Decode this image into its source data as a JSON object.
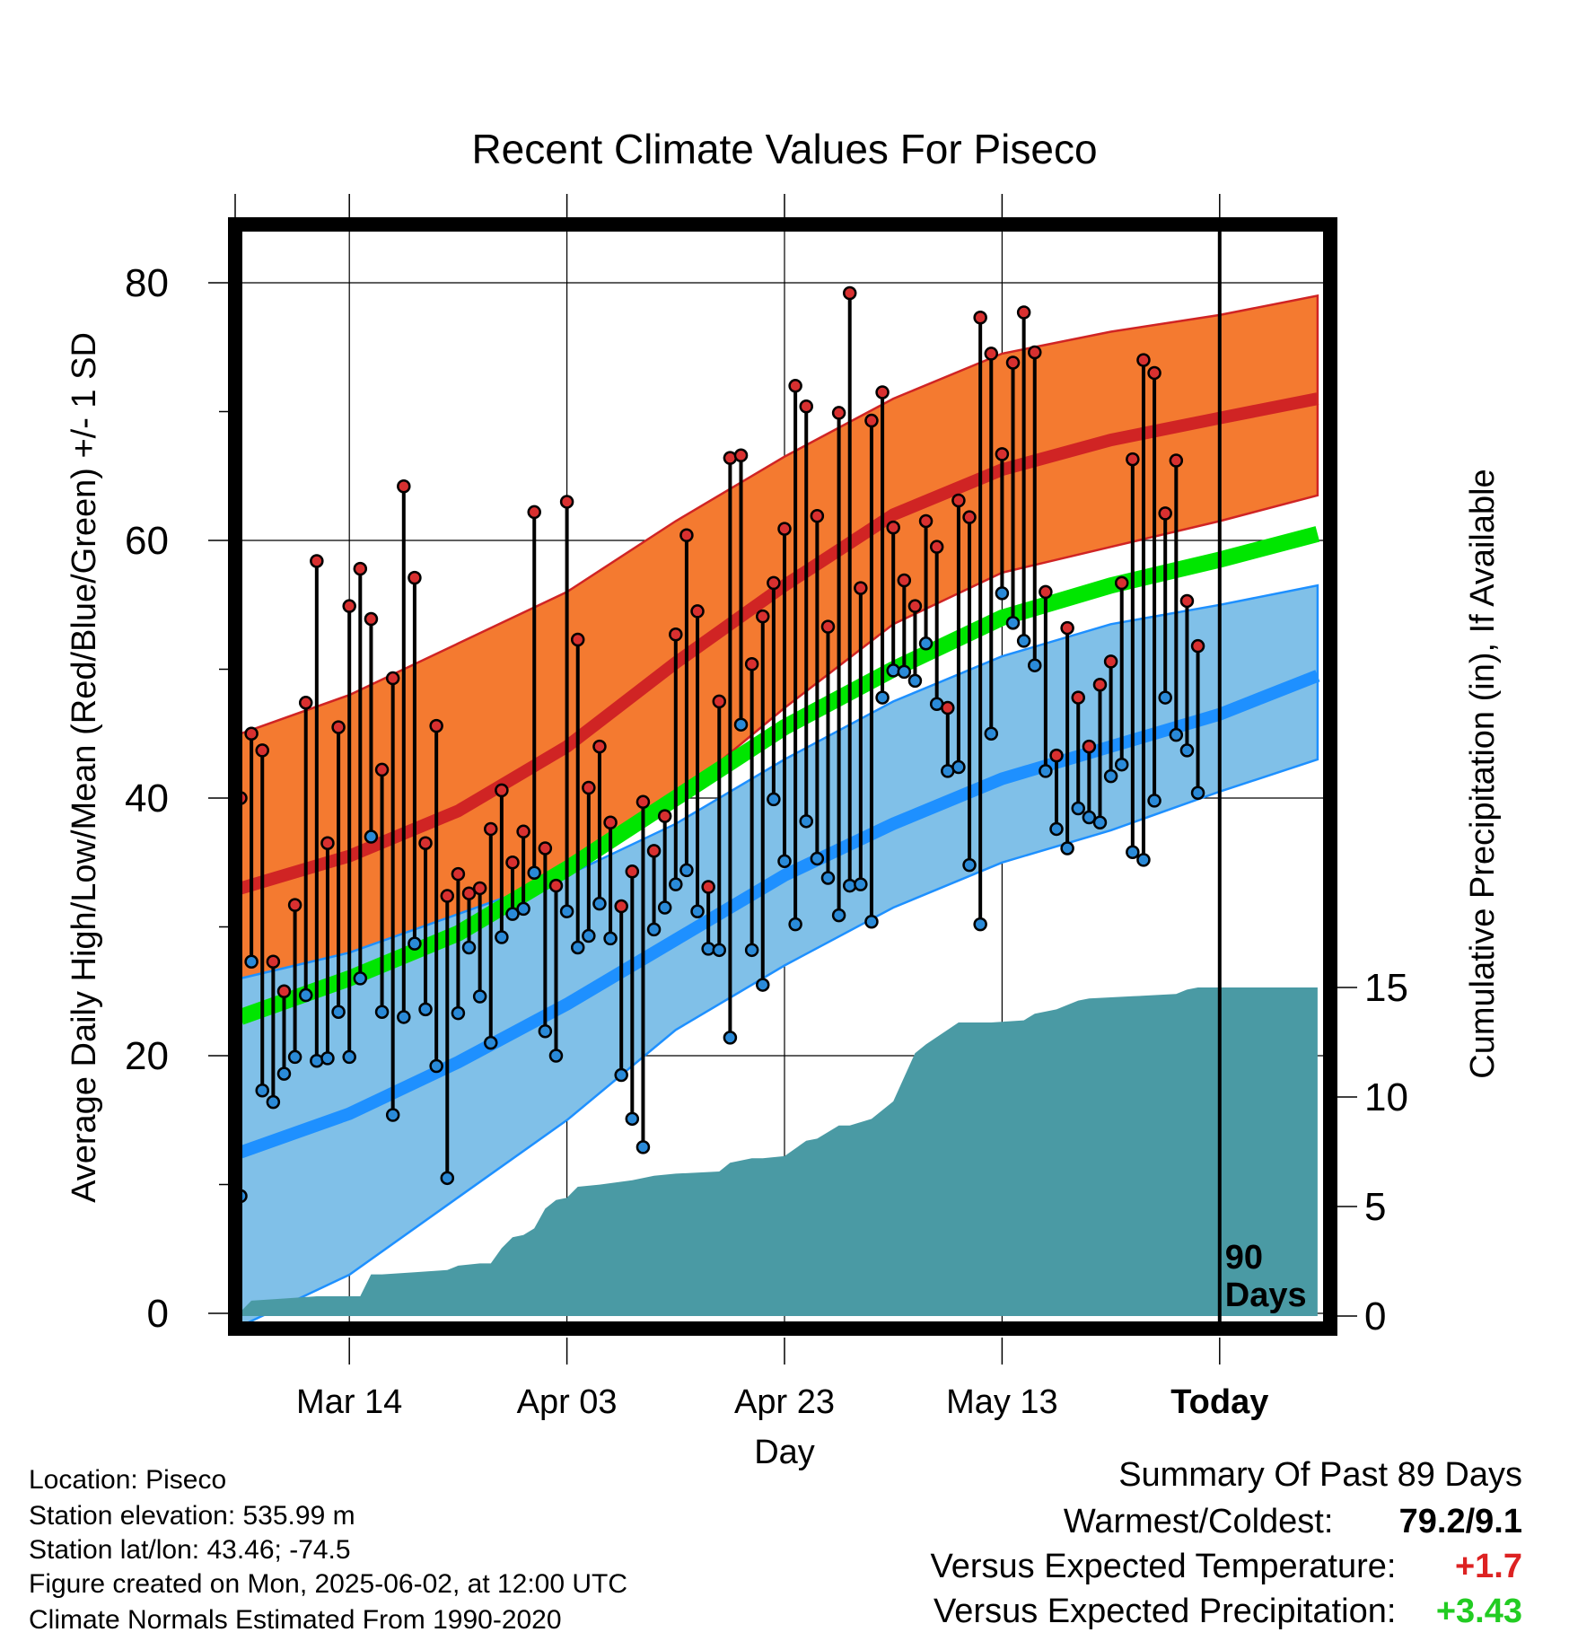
{
  "chart_data": {
    "type": "line",
    "title": "Recent Climate Values For Piseco",
    "xlabel": "Day",
    "ylabel": "Average Daily High/Low/Mean (Red/Blue/Green) +/- 1 SD",
    "y2label": "Cumulative Precipitation (in), If Available",
    "ylim": [
      0,
      87
    ],
    "y2lim": [
      0,
      18.5
    ],
    "xlim": [
      -10,
      90
    ],
    "x_tick_days": [
      10,
      30,
      50,
      70,
      90
    ],
    "x_tick_labels": [
      "Mar 14",
      "Apr 03",
      "Apr 23",
      "May 13",
      "Today"
    ],
    "y_ticks": [
      0,
      20,
      40,
      60,
      80
    ],
    "y_minor_ticks": [
      10,
      30,
      50,
      70
    ],
    "y2_ticks": [
      0,
      5,
      10,
      15
    ],
    "grid": true,
    "today_marker": {
      "day": 90,
      "label_line1": "90",
      "label_line2": "Days"
    },
    "normal_high": {
      "day": [
        0,
        10,
        20,
        30,
        40,
        50,
        60,
        70,
        80,
        90,
        99
      ],
      "mean": [
        33,
        35.5,
        39,
        44,
        50.5,
        56.5,
        62,
        65.5,
        67.8,
        69.5,
        71
      ],
      "upper": [
        45,
        48,
        52,
        56,
        61.5,
        66.5,
        71,
        74.5,
        76.2,
        77.5,
        79
      ],
      "lower": [
        24,
        26.5,
        29.5,
        34,
        40,
        47,
        53.5,
        57.5,
        59.5,
        61.5,
        63.5
      ]
    },
    "normal_low": {
      "day": [
        0,
        10,
        20,
        30,
        40,
        50,
        60,
        70,
        80,
        90,
        99
      ],
      "mean": [
        12.5,
        15.5,
        19.5,
        24,
        29,
        34,
        38,
        41.5,
        44,
        46.5,
        49.5
      ],
      "upper": [
        26,
        28,
        31,
        34,
        38,
        43,
        47.5,
        51,
        53.5,
        55,
        56.5
      ],
      "lower": [
        -1,
        3,
        9,
        15,
        22,
        27,
        31.5,
        35,
        37.5,
        40.5,
        43
      ]
    },
    "normal_mean": {
      "day": [
        0,
        10,
        20,
        30,
        40,
        50,
        60,
        70,
        80,
        90,
        99
      ],
      "values": [
        23,
        26,
        29.5,
        34.5,
        40,
        45.5,
        50,
        54,
        56.5,
        58.5,
        60.5
      ]
    },
    "observed": {
      "day": [
        0,
        1,
        2,
        3,
        4,
        5,
        6,
        7,
        8,
        9,
        10,
        11,
        12,
        13,
        14,
        15,
        16,
        17,
        18,
        19,
        20,
        21,
        22,
        23,
        24,
        25,
        26,
        27,
        28,
        29,
        30,
        31,
        32,
        33,
        34,
        35,
        36,
        37,
        38,
        39,
        40,
        41,
        42,
        43,
        44,
        45,
        46,
        47,
        48,
        49,
        50,
        51,
        52,
        53,
        54,
        55,
        56,
        57,
        58,
        59,
        60,
        61,
        62,
        63,
        64,
        65,
        66,
        67,
        68,
        69,
        70,
        71,
        72,
        73,
        74,
        75,
        76,
        77,
        78,
        79,
        80,
        81,
        82,
        83,
        84,
        85,
        86,
        87,
        88
      ],
      "high": [
        40,
        45,
        43.7,
        27.3,
        25,
        31.7,
        47.4,
        58.4,
        36.5,
        45.5,
        54.9,
        57.8,
        53.9,
        42.2,
        49.3,
        64.2,
        57.1,
        36.5,
        45.6,
        32.4,
        34.1,
        32.6,
        33,
        37.6,
        40.6,
        35,
        37.4,
        62.2,
        36.1,
        33.2,
        63,
        52.3,
        40.8,
        44,
        38.1,
        31.6,
        34.3,
        39.7,
        35.9,
        38.6,
        52.7,
        60.4,
        54.5,
        33.1,
        47.5,
        66.4,
        66.6,
        50.4,
        54.1,
        56.7,
        60.9,
        72,
        70.4,
        61.9,
        53.3,
        69.9,
        79.2,
        56.3,
        69.3,
        71.5,
        61,
        56.9,
        54.9,
        61.5,
        59.5,
        47,
        63.1,
        61.8,
        77.3,
        74.5,
        66.7,
        73.8,
        77.7,
        74.6,
        56,
        43.3,
        53.2,
        47.8,
        44,
        48.8,
        50.6,
        56.7,
        66.3,
        74,
        73,
        62.1,
        66.2,
        55.3,
        51.8
      ],
      "low": [
        9.1,
        27.3,
        17.3,
        16.4,
        18.6,
        19.9,
        24.7,
        19.6,
        19.8,
        23.4,
        19.9,
        26,
        37,
        23.4,
        15.4,
        23,
        28.7,
        23.6,
        19.2,
        10.5,
        23.3,
        28.4,
        24.6,
        21,
        29.2,
        31,
        31.4,
        34.2,
        21.9,
        20,
        31.2,
        28.4,
        29.3,
        31.8,
        29.1,
        18.5,
        15.1,
        12.9,
        29.8,
        31.5,
        33.3,
        34.4,
        31.2,
        28.3,
        28.2,
        21.4,
        45.7,
        28.2,
        25.5,
        39.9,
        35.1,
        30.2,
        38.2,
        35.3,
        33.8,
        30.9,
        33.2,
        33.3,
        30.4,
        47.8,
        49.9,
        49.8,
        49.1,
        52,
        47.3,
        42.1,
        42.4,
        34.8,
        30.2,
        45,
        55.9,
        53.6,
        52.2,
        50.3,
        42.1,
        37.6,
        36.1,
        39.2,
        38.5,
        38.1,
        41.7,
        42.6,
        35.8,
        35.2,
        39.8,
        47.8,
        44.9,
        43.7,
        40.4
      ]
    },
    "precipitation": {
      "day": [
        0,
        1,
        4,
        7,
        10,
        11,
        12,
        13,
        16,
        19,
        20,
        22,
        23,
        24,
        25,
        26,
        27,
        28,
        29,
        30,
        31,
        33,
        36,
        38,
        40,
        44,
        45,
        47,
        48,
        50,
        52,
        53,
        55,
        56,
        58,
        60,
        61,
        62,
        63,
        66,
        69,
        72,
        73,
        75,
        77,
        78,
        82,
        86,
        87,
        88,
        89,
        99
      ],
      "total": [
        0.2,
        0.7,
        0.8,
        0.9,
        0.9,
        0.9,
        1.9,
        1.9,
        2.0,
        2.1,
        2.3,
        2.4,
        2.4,
        3.1,
        3.6,
        3.7,
        4.0,
        4.9,
        5.3,
        5.4,
        5.9,
        6.0,
        6.2,
        6.4,
        6.5,
        6.6,
        7.0,
        7.2,
        7.2,
        7.3,
        8.0,
        8.1,
        8.7,
        8.7,
        9.0,
        9.8,
        10.9,
        12.0,
        12.4,
        13.4,
        13.4,
        13.5,
        13.8,
        14.0,
        14.4,
        14.5,
        14.6,
        14.7,
        14.9,
        15.0,
        15.0,
        15.0
      ]
    }
  },
  "footer": {
    "location": "Location: Piseco",
    "elevation": "Station elevation: 535.99 m",
    "latlon": "Station lat/lon: 43.46; -74.5",
    "created": "Figure created on Mon, 2025-06-02, at 12:00 UTC",
    "normals": "Climate Normals Estimated From 1990-2020"
  },
  "summary": {
    "heading": "Summary Of Past 89 Days",
    "warm_cold_label": "Warmest/Coldest:",
    "warm_cold_value": "79.2/9.1",
    "temp_label": "Versus Expected Temperature:",
    "temp_value": "+1.7",
    "temp_color": "#dd2222",
    "precip_label": "Versus Expected Precipitation:",
    "precip_value": "+3.43",
    "precip_color": "#22cc22"
  },
  "colors": {
    "high_band": "#f47a30",
    "high_line": "#d02424",
    "low_band": "#80c0e8",
    "low_line": "#1e90ff",
    "mean_line": "#00e600",
    "precip_fill": "#4a9aa4",
    "high_dot": "#d83030",
    "low_dot": "#2a8ad8"
  }
}
